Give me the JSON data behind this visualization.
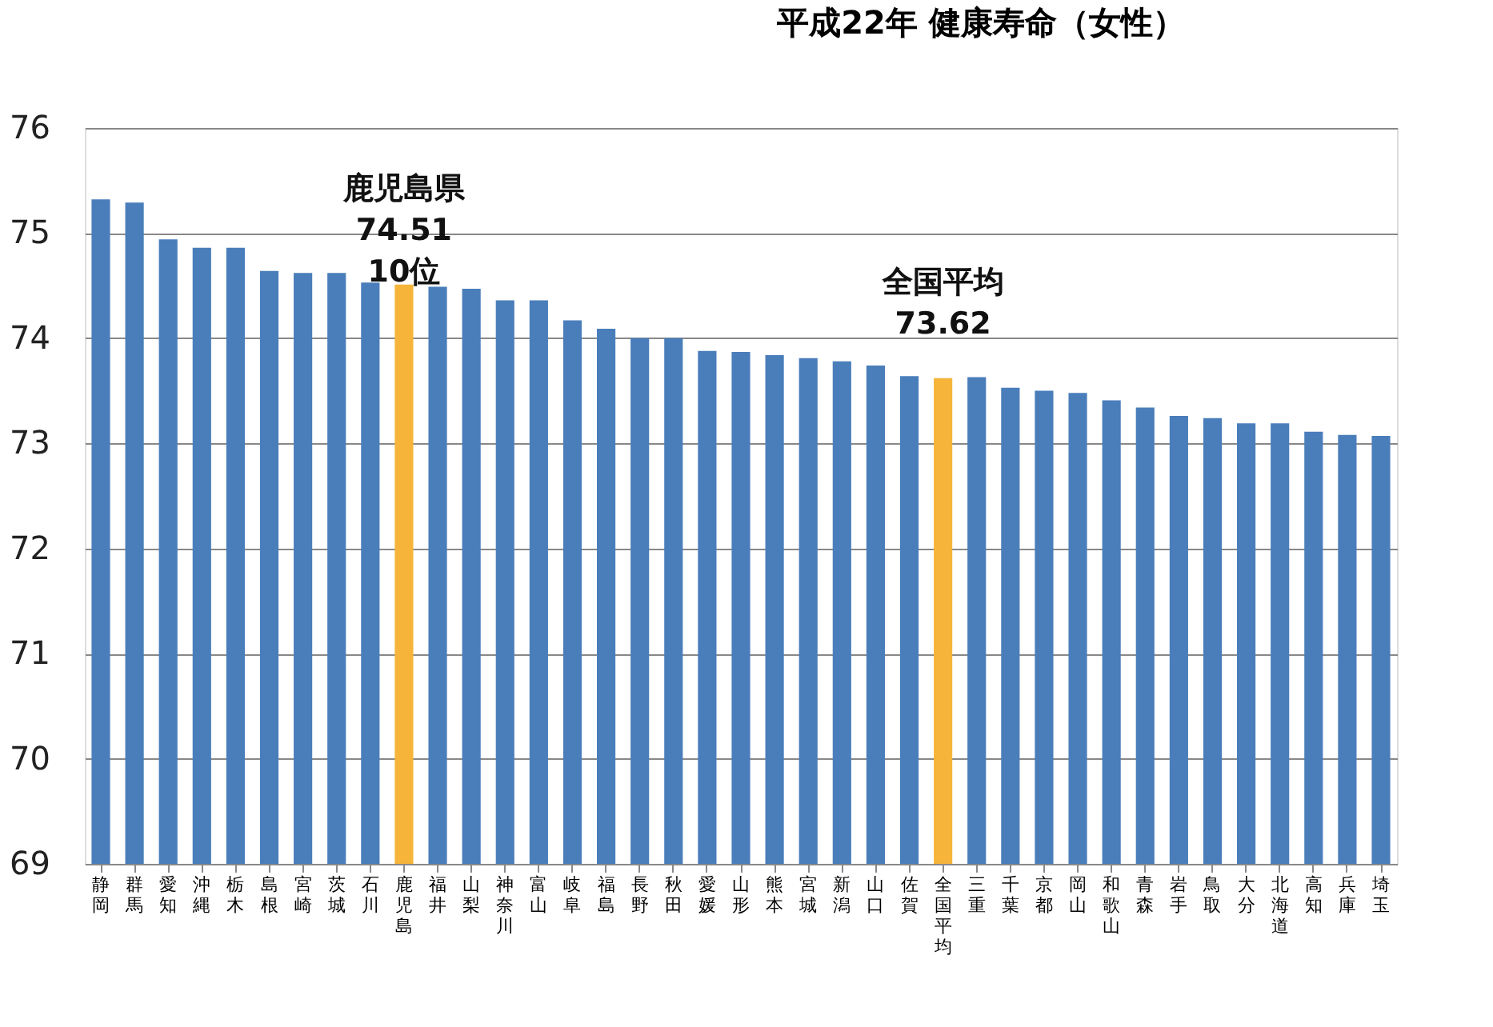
{
  "chart_data": {
    "type": "bar",
    "title": "平成22年  健康寿命（女性）",
    "categories": [
      "静岡",
      "群馬",
      "愛知",
      "沖縄",
      "栃木",
      "島根",
      "宮崎",
      "茨城",
      "石川",
      "鹿児島",
      "福井",
      "山梨",
      "神奈川",
      "富山",
      "岐阜",
      "福島",
      "長野",
      "秋田",
      "愛媛",
      "山形",
      "熊本",
      "宮城",
      "新潟",
      "山口",
      "佐賀",
      "全国平均",
      "三重",
      "千葉",
      "京都",
      "岡山",
      "和歌山",
      "青森",
      "岩手",
      "鳥取",
      "大分",
      "北海道",
      "高知",
      "兵庫",
      "埼玉"
    ],
    "values": [
      75.32,
      75.29,
      74.94,
      74.86,
      74.86,
      74.64,
      74.62,
      74.62,
      74.53,
      74.51,
      74.49,
      74.47,
      74.36,
      74.36,
      74.17,
      74.09,
      74.0,
      74.0,
      73.88,
      73.87,
      73.84,
      73.81,
      73.78,
      73.74,
      73.64,
      73.62,
      73.63,
      73.53,
      73.5,
      73.48,
      73.41,
      73.34,
      73.26,
      73.24,
      73.19,
      73.19,
      73.11,
      73.08,
      73.07
    ],
    "colors": [
      "#4a7ebb",
      "#4a7ebb",
      "#4a7ebb",
      "#4a7ebb",
      "#4a7ebb",
      "#4a7ebb",
      "#4a7ebb",
      "#4a7ebb",
      "#4a7ebb",
      "#f6b53a",
      "#4a7ebb",
      "#4a7ebb",
      "#4a7ebb",
      "#4a7ebb",
      "#4a7ebb",
      "#4a7ebb",
      "#4a7ebb",
      "#4a7ebb",
      "#4a7ebb",
      "#4a7ebb",
      "#4a7ebb",
      "#4a7ebb",
      "#4a7ebb",
      "#4a7ebb",
      "#4a7ebb",
      "#f6b53a",
      "#4a7ebb",
      "#4a7ebb",
      "#4a7ebb",
      "#4a7ebb",
      "#4a7ebb",
      "#4a7ebb",
      "#4a7ebb",
      "#4a7ebb",
      "#4a7ebb",
      "#4a7ebb",
      "#4a7ebb",
      "#4a7ebb",
      "#4a7ebb"
    ],
    "ylim": [
      69,
      76
    ],
    "yticks": [
      69,
      70,
      71,
      72,
      73,
      74,
      75,
      76
    ],
    "grid": "y",
    "annotations": [
      {
        "text": "鹿児島県\n74.51\n10位",
        "x": "鹿児島",
        "y": 74.51
      },
      {
        "text": "全国平均\n73.62",
        "x": "全国平均",
        "y": 73.62
      }
    ]
  }
}
